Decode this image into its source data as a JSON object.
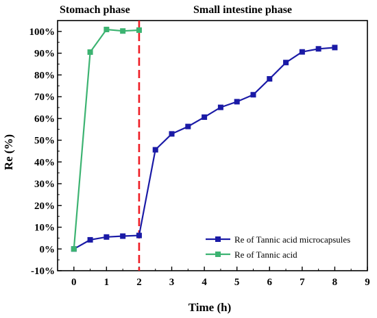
{
  "chart_data": {
    "type": "line",
    "title": "",
    "xlabel": "Time (h)",
    "ylabel": "Re (%)",
    "xlim": [
      -0.5,
      9
    ],
    "ylim": [
      -10,
      105
    ],
    "x_ticks": [
      0,
      1,
      2,
      3,
      4,
      5,
      6,
      7,
      8,
      9
    ],
    "y_ticks": [
      -10,
      0,
      10,
      20,
      30,
      40,
      50,
      60,
      70,
      80,
      90,
      100
    ],
    "y_tick_labels": [
      "-10%",
      "0%",
      "10%",
      "20%",
      "30%",
      "40%",
      "50%",
      "60%",
      "70%",
      "80%",
      "90%",
      "100%"
    ],
    "grid": false,
    "legend_position": "bottom-right",
    "annotations": {
      "stomach_label": "Stomach phase",
      "intestine_label": "Small intestine phase",
      "divider_x": 2,
      "divider_color": "#ee1c24"
    },
    "series": [
      {
        "name": "Re of Tannic acid microcapsules",
        "color": "#1a1aa6",
        "x": [
          0,
          0.5,
          1,
          1.5,
          2,
          2.5,
          3,
          3.5,
          4,
          4.5,
          5,
          5.5,
          6,
          6.5,
          7,
          7.5,
          8
        ],
        "y": [
          0,
          4.2,
          5.5,
          5.9,
          6.2,
          45.6,
          52.9,
          56.3,
          60.6,
          65.1,
          67.7,
          70.9,
          78.2,
          85.7,
          90.6,
          92.0,
          92.6
        ]
      },
      {
        "name": "Re of Tannic acid",
        "color": "#3cb371",
        "x": [
          0,
          0.5,
          1,
          1.5,
          2
        ],
        "y": [
          0,
          90.5,
          100.9,
          100.2,
          100.6
        ]
      }
    ]
  }
}
